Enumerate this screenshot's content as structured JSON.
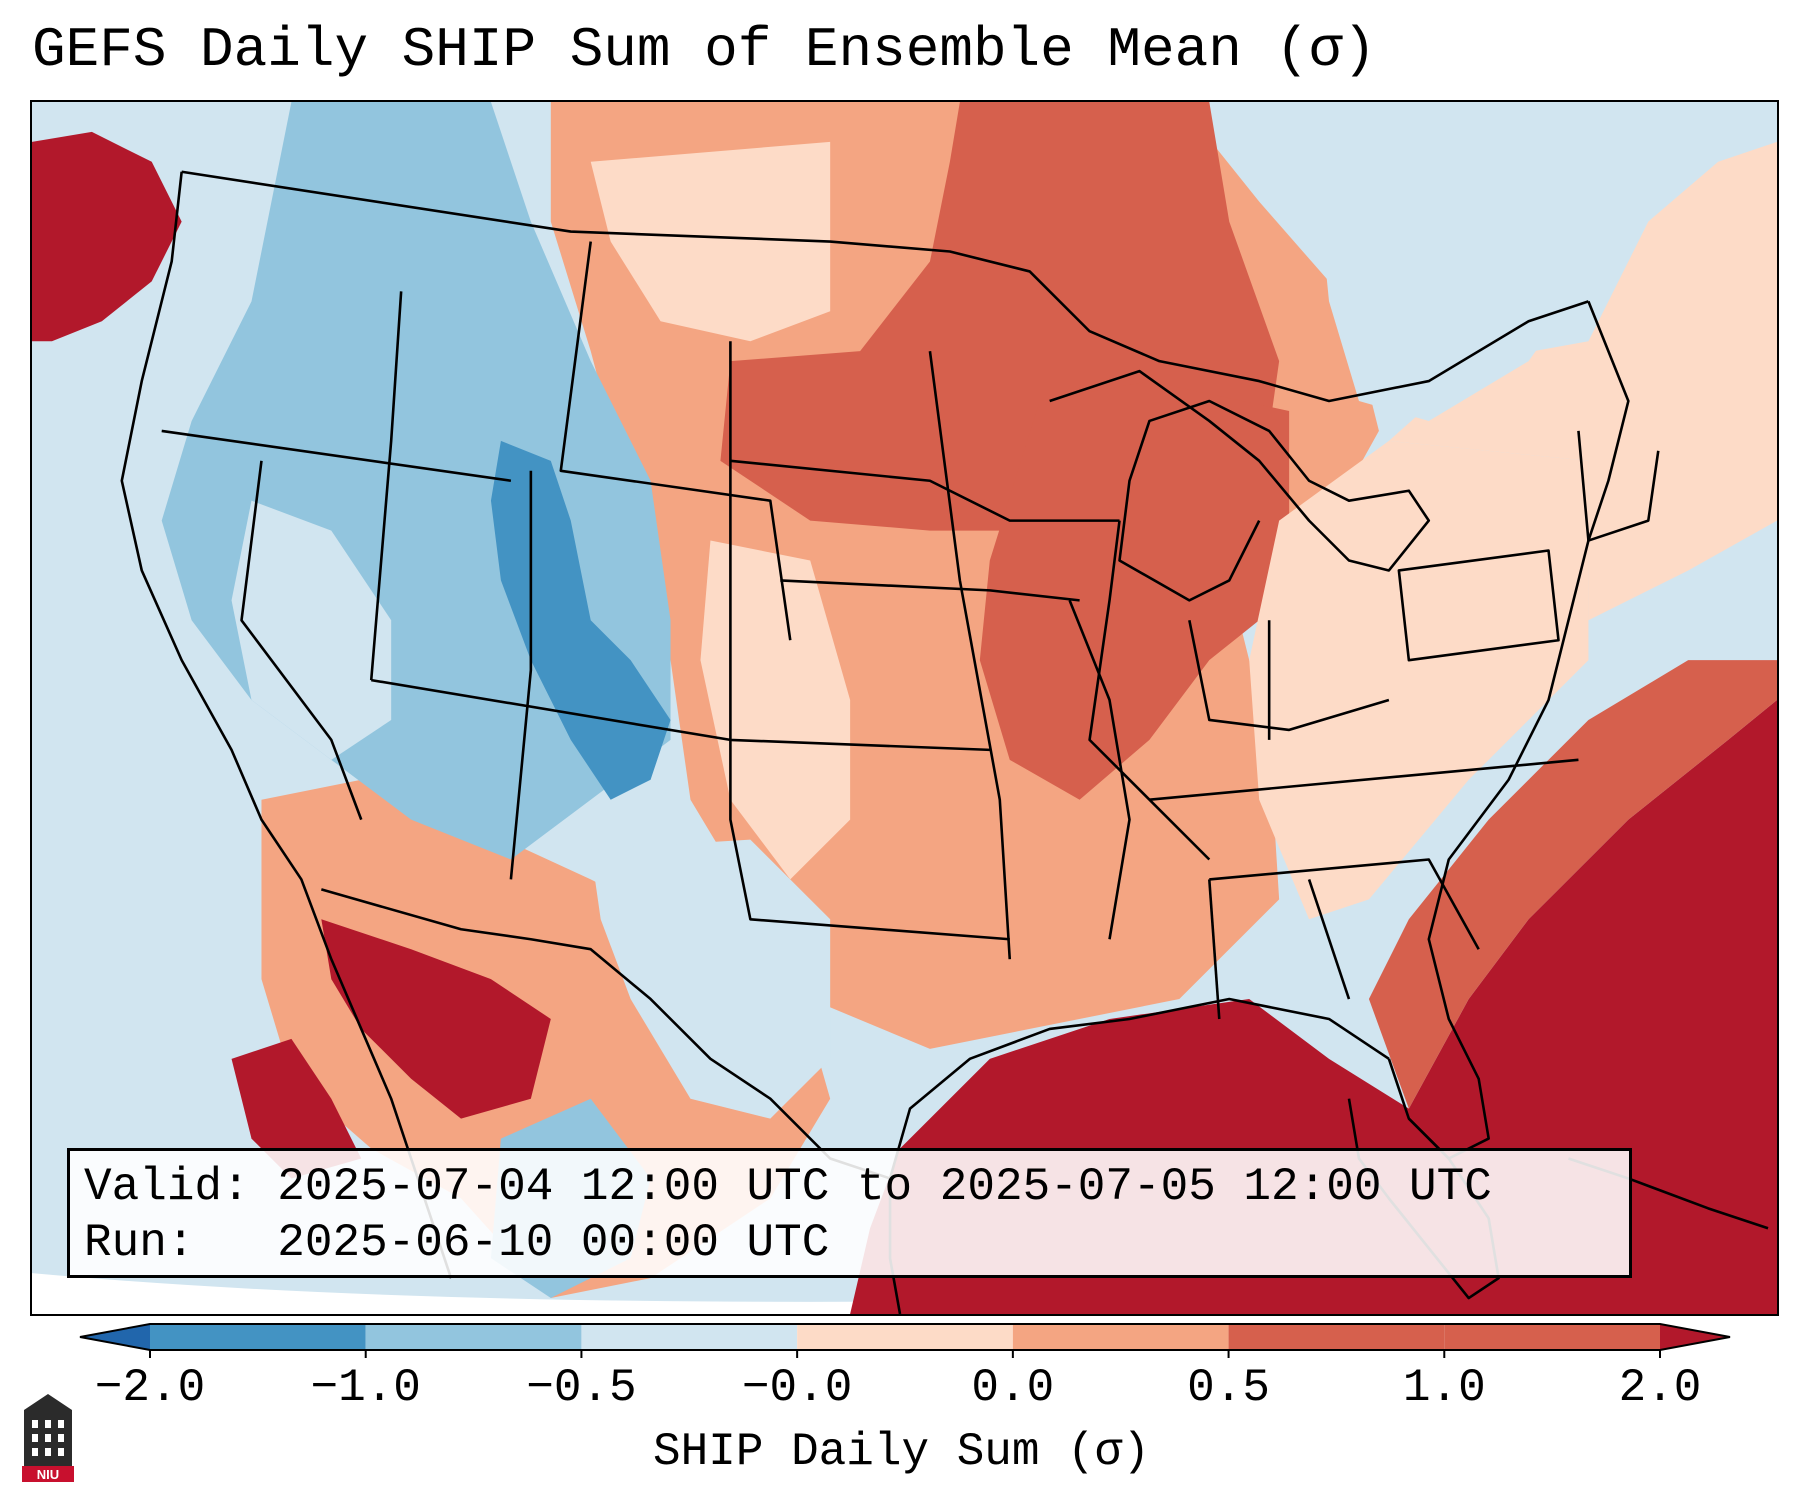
{
  "title": "GEFS Daily SHIP Sum of Ensemble Mean (σ)",
  "info": {
    "valid_label": "Valid:",
    "valid_value": "2025-07-04 12:00 UTC to 2025-07-05 12:00 UTC",
    "run_label": "Run:",
    "run_value": "2025-06-10 00:00 UTC"
  },
  "colorbar": {
    "label": "SHIP Daily Sum (σ)",
    "ticks": [
      "−2.0",
      "−1.0",
      "−0.5",
      "−0.0",
      "0.0",
      "0.5",
      "1.0",
      "2.0"
    ],
    "colors": [
      "#2166ac",
      "#4393c3",
      "#92c5de",
      "#d1e5f0",
      "#fddbc7",
      "#f4a582",
      "#d6604d",
      "#b2182b"
    ],
    "extend": "both"
  },
  "logo": {
    "text": "NIU"
  },
  "colors": {
    "strong_negative": "#4393c3",
    "negative": "#92c5de",
    "weak_negative": "#d1e5f0",
    "weak_positive": "#fddbc7",
    "positive": "#f4a582",
    "strong_positive": "#d6604d",
    "very_strong_positive": "#b2182b"
  }
}
